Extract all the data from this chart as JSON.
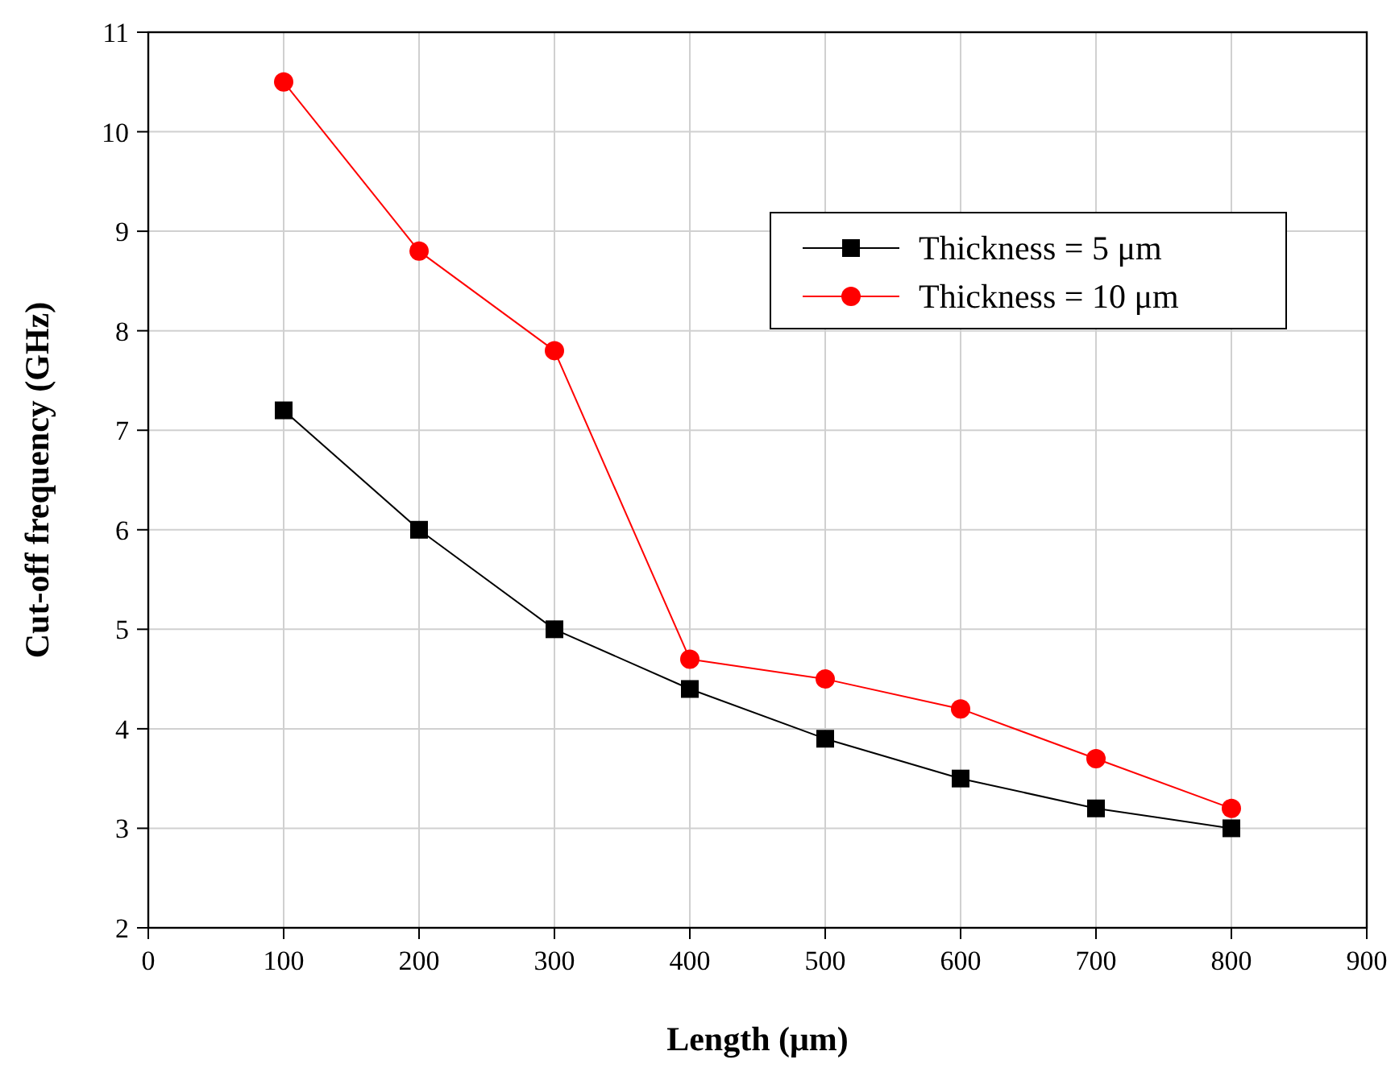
{
  "chart_data": {
    "type": "line",
    "xlabel": "Length (μm)",
    "ylabel": "Cut-off frequency (GHz)",
    "x": [
      100,
      200,
      300,
      400,
      500,
      600,
      700,
      800
    ],
    "series": [
      {
        "name": "Thickness = 5 μm",
        "color": "#000000",
        "marker": "square",
        "values": [
          7.2,
          6.0,
          5.0,
          4.4,
          3.9,
          3.5,
          3.2,
          3.0
        ]
      },
      {
        "name": "Thickness = 10 μm",
        "color": "#ff0000",
        "marker": "circle",
        "values": [
          10.5,
          8.8,
          7.8,
          4.7,
          4.5,
          4.2,
          3.7,
          3.2
        ]
      }
    ],
    "xlim": [
      0,
      900
    ],
    "xticks": [
      0,
      100,
      200,
      300,
      400,
      500,
      600,
      700,
      800,
      900
    ],
    "ylim": [
      2,
      11
    ],
    "yticks": [
      2,
      3,
      4,
      5,
      6,
      7,
      8,
      9,
      10,
      11
    ],
    "grid": true,
    "legend": "top right",
    "line_style": "solid"
  }
}
